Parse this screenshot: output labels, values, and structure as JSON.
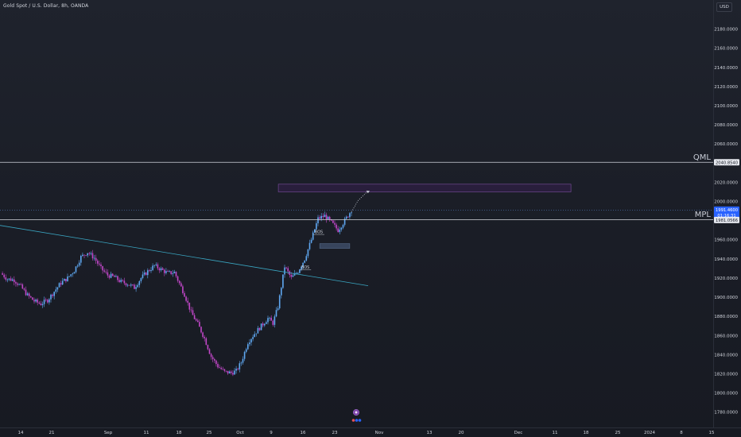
{
  "header": {
    "symbol_title": "Gold Spot / U.S. Dollar, 8h, OANDA",
    "currency": "USD"
  },
  "colors": {
    "up": "#5fa8f2",
    "down": "#c247c9",
    "trendline": "#3aa6c2",
    "hline": "#d1d4dc",
    "zone_fill": "#2c1f3f",
    "zone_border": "#7d4fa3",
    "orderblock": "#3e4f6a",
    "axis_text": "#d1d4dc",
    "label_bg": "#2962ff"
  },
  "chart_data": {
    "type": "candlestick",
    "x_tick_labels": [
      "14",
      "21",
      "Sep",
      "11",
      "18",
      "25",
      "Oct",
      "9",
      "16",
      "23",
      "Nov",
      "13",
      "20",
      "Dec",
      "11",
      "18",
      "25",
      "2024",
      "8",
      "15"
    ],
    "y_tick_labels": [
      "2180.0000",
      "2160.0000",
      "2140.0000",
      "2120.0000",
      "2100.0000",
      "2080.0000",
      "2060.0000",
      "2040.0000",
      "2020.0000",
      "2000.0000",
      "1980.0000",
      "1960.0000",
      "1940.0000",
      "1920.0000",
      "1900.0000",
      "1880.0000",
      "1860.0000",
      "1840.0000",
      "1820.0000",
      "1800.0000",
      "1780.0000"
    ],
    "ylim": [
      1768,
      2204
    ],
    "grid": false,
    "close_path": [
      {
        "t": 0,
        "v": 1925
      },
      {
        "t": 4,
        "v": 1919
      },
      {
        "t": 8,
        "v": 1918
      },
      {
        "t": 12,
        "v": 1911
      },
      {
        "t": 16,
        "v": 1902
      },
      {
        "t": 20,
        "v": 1896
      },
      {
        "t": 24,
        "v": 1893
      },
      {
        "t": 28,
        "v": 1897
      },
      {
        "t": 32,
        "v": 1906
      },
      {
        "t": 36,
        "v": 1915
      },
      {
        "t": 40,
        "v": 1920
      },
      {
        "t": 44,
        "v": 1928
      },
      {
        "t": 48,
        "v": 1942
      },
      {
        "t": 52,
        "v": 1947
      },
      {
        "t": 56,
        "v": 1941
      },
      {
        "t": 60,
        "v": 1930
      },
      {
        "t": 64,
        "v": 1923
      },
      {
        "t": 68,
        "v": 1921
      },
      {
        "t": 72,
        "v": 1916
      },
      {
        "t": 76,
        "v": 1914
      },
      {
        "t": 80,
        "v": 1910
      },
      {
        "t": 84,
        "v": 1920
      },
      {
        "t": 88,
        "v": 1927
      },
      {
        "t": 92,
        "v": 1933
      },
      {
        "t": 96,
        "v": 1929
      },
      {
        "t": 100,
        "v": 1925
      },
      {
        "t": 104,
        "v": 1926
      },
      {
        "t": 106,
        "v": 1918
      },
      {
        "t": 110,
        "v": 1903
      },
      {
        "t": 114,
        "v": 1884
      },
      {
        "t": 118,
        "v": 1872
      },
      {
        "t": 122,
        "v": 1857
      },
      {
        "t": 126,
        "v": 1838
      },
      {
        "t": 130,
        "v": 1828
      },
      {
        "t": 134,
        "v": 1822
      },
      {
        "t": 138,
        "v": 1821
      },
      {
        "t": 141,
        "v": 1823
      },
      {
        "t": 144,
        "v": 1832
      },
      {
        "t": 148,
        "v": 1853
      },
      {
        "t": 152,
        "v": 1862
      },
      {
        "t": 156,
        "v": 1870
      },
      {
        "t": 160,
        "v": 1878
      },
      {
        "t": 163,
        "v": 1873
      },
      {
        "t": 166,
        "v": 1890
      },
      {
        "t": 170,
        "v": 1932
      },
      {
        "t": 174,
        "v": 1920
      },
      {
        "t": 178,
        "v": 1927
      },
      {
        "t": 182,
        "v": 1940
      },
      {
        "t": 186,
        "v": 1960
      },
      {
        "t": 190,
        "v": 1982
      },
      {
        "t": 194,
        "v": 1985
      },
      {
        "t": 198,
        "v": 1978
      },
      {
        "t": 202,
        "v": 1970
      },
      {
        "t": 206,
        "v": 1980
      },
      {
        "t": 210,
        "v": 1991
      }
    ],
    "projection": [
      {
        "t": 210,
        "v": 1989
      },
      {
        "t": 214,
        "v": 2001
      },
      {
        "t": 220,
        "v": 2011
      }
    ],
    "trendline": [
      {
        "t": 0,
        "v": 1975
      },
      {
        "t": 220,
        "v": 1912
      }
    ],
    "horizontal_levels": [
      {
        "name": "QML",
        "value": 2040.854
      },
      {
        "name": "MPL",
        "value": 1981.0566
      }
    ],
    "zone": {
      "t0": 166,
      "t1": 340,
      "v_high": 2018,
      "v_low": 2010
    },
    "order_block": {
      "t0": 191,
      "t1": 209,
      "v_high": 1956,
      "v_low": 1951
    },
    "bos_labels": [
      {
        "text": "BOS",
        "t": 182,
        "v": 1931
      },
      {
        "text": "BOS",
        "t": 190,
        "v": 1968
      }
    ],
    "price_labels": {
      "qml": "2040.8540",
      "last_price": "1991.4600",
      "countdown": "01:16:31",
      "mpl": "1981.0566"
    }
  }
}
